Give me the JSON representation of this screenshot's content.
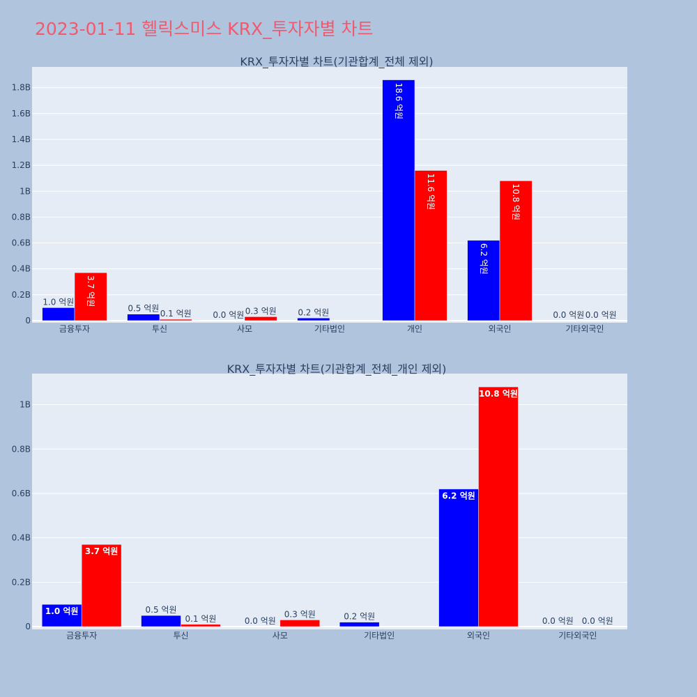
{
  "title": "2023-01-11 헬릭스미스 KRX_투자자별 차트",
  "colors": {
    "buy": "#0000ff",
    "sell": "#ff0000",
    "page_bg": "#b0c4de",
    "plot_bg": "#e5ecf6"
  },
  "chart_data": [
    {
      "type": "bar",
      "title": "KRX_투자자별 차트(기관합계_전체 제외)",
      "categories": [
        "금융투자",
        "투신",
        "사모",
        "기타법인",
        "개인",
        "외국인",
        "기타외국인"
      ],
      "series": [
        {
          "color": "#0000ff",
          "values": [
            100000000,
            50000000,
            0,
            20000000,
            1860000000,
            620000000,
            0
          ],
          "labels": [
            "1.0 억원",
            "0.5 억원",
            "0.0 억원",
            "0.2 억원",
            "18.6 억원",
            "6.2 억원",
            "0.0 억원"
          ]
        },
        {
          "color": "#ff0000",
          "values": [
            370000000,
            10000000,
            30000000,
            0,
            1160000000,
            1080000000,
            0
          ],
          "labels": [
            "3.7 억원",
            "0.1 억원",
            "0.3 억원",
            "",
            "11.6 억원",
            "10.8 억원",
            "0.0 억원"
          ]
        }
      ],
      "ylim": [
        0,
        1960000000
      ],
      "yticks": [
        0,
        200000000,
        400000000,
        600000000,
        800000000,
        1000000000,
        1200000000,
        1400000000,
        1600000000,
        1800000000
      ],
      "ytick_labels": [
        "0",
        "0.2B",
        "0.4B",
        "0.6B",
        "0.8B",
        "1B",
        "1.2B",
        "1.4B",
        "1.6B",
        "1.8B"
      ],
      "grid": true
    },
    {
      "type": "bar",
      "title": "KRX_투자자별 차트(기관합계_전체_개인 제외)",
      "categories": [
        "금융투자",
        "투신",
        "사모",
        "기타법인",
        "외국인",
        "기타외국인"
      ],
      "series": [
        {
          "color": "#0000ff",
          "values": [
            100000000,
            50000000,
            0,
            20000000,
            620000000,
            0
          ],
          "labels": [
            "1.0 억원",
            "0.5 억원",
            "0.0 억원",
            "0.2 억원",
            "6.2 억원",
            "0.0 억원"
          ]
        },
        {
          "color": "#ff0000",
          "values": [
            370000000,
            10000000,
            30000000,
            0,
            1080000000,
            0
          ],
          "labels": [
            "3.7 억원",
            "0.1 억원",
            "0.3 억원",
            "",
            "10.8 억원",
            "0.0 억원"
          ]
        }
      ],
      "ylim": [
        0,
        1140000000
      ],
      "yticks": [
        0,
        200000000,
        400000000,
        600000000,
        800000000,
        1000000000
      ],
      "ytick_labels": [
        "0",
        "0.2B",
        "0.4B",
        "0.6B",
        "0.8B",
        "1B"
      ],
      "grid": true
    }
  ]
}
